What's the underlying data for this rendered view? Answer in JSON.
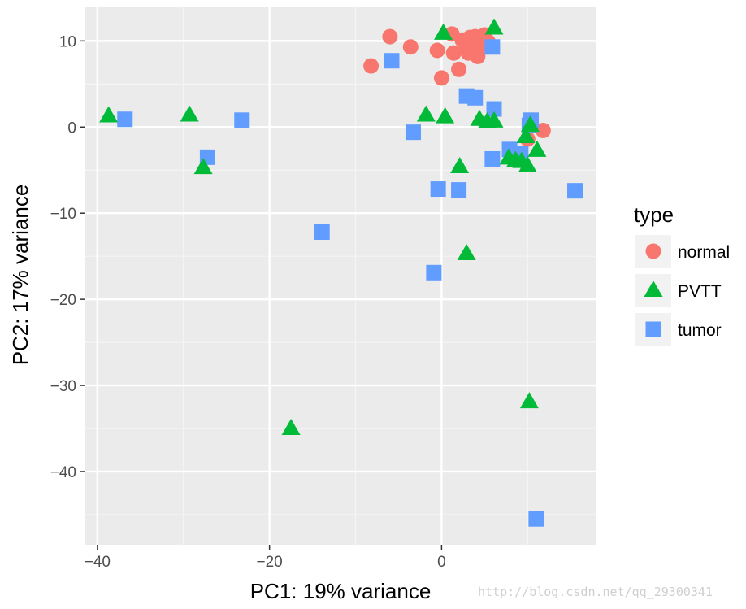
{
  "chart_data": {
    "type": "scatter",
    "xlabel": "PC1: 19% variance",
    "ylabel": "PC2: 17% variance",
    "xlim": [
      -41.5,
      18
    ],
    "ylim": [
      -48.5,
      14
    ],
    "xticks": [
      -40,
      -20,
      0
    ],
    "yticks": [
      10,
      0,
      -10,
      -20,
      -30,
      -40
    ],
    "tick_labels": {
      "x": [
        "−40",
        "−20",
        "0"
      ],
      "y": [
        "10",
        "0",
        "−10",
        "−20",
        "−30",
        "−40"
      ]
    },
    "grid": true,
    "legend": {
      "title": "type",
      "position": "right"
    },
    "series": [
      {
        "name": "normal",
        "shape": "circle",
        "color": "#F8766D",
        "points": [
          [
            -8.2,
            7.1
          ],
          [
            -6,
            10.5
          ],
          [
            -3.6,
            9.3
          ],
          [
            -0.5,
            8.9
          ],
          [
            0,
            5.7
          ],
          [
            1.2,
            10.8
          ],
          [
            1.4,
            8.6
          ],
          [
            2,
            6.7
          ],
          [
            2.4,
            10.1
          ],
          [
            2.9,
            9.3
          ],
          [
            3.1,
            8.6
          ],
          [
            3.3,
            10.4
          ],
          [
            3.6,
            9.6
          ],
          [
            3.9,
            10.5
          ],
          [
            4.2,
            8.2
          ],
          [
            4.3,
            9.2
          ],
          [
            4.6,
            10.3
          ],
          [
            5,
            10.7
          ],
          [
            5.4,
            9.9
          ],
          [
            10,
            -1.4
          ],
          [
            11.8,
            -0.4
          ]
        ]
      },
      {
        "name": "PVTT",
        "shape": "triangle",
        "color": "#00BA38",
        "points": [
          [
            -38.7,
            1.3
          ],
          [
            -29.3,
            1.4
          ],
          [
            -27.7,
            -4.7
          ],
          [
            -17.5,
            -35
          ],
          [
            -1.8,
            1.4
          ],
          [
            0.2,
            10.9
          ],
          [
            0.4,
            1.2
          ],
          [
            2.1,
            -4.6
          ],
          [
            2.9,
            -14.7
          ],
          [
            4.4,
            0.9
          ],
          [
            5.3,
            0.6
          ],
          [
            6.1,
            0.7
          ],
          [
            6.1,
            11.5
          ],
          [
            7.8,
            -3.6
          ],
          [
            8.6,
            -3.9
          ],
          [
            9.3,
            -4
          ],
          [
            9.8,
            -1.1
          ],
          [
            10,
            -4.5
          ],
          [
            10.3,
            0.2
          ],
          [
            10.2,
            -31.9
          ],
          [
            11.1,
            -2.7
          ]
        ]
      },
      {
        "name": "tumor",
        "shape": "square",
        "color": "#619CFF",
        "points": [
          [
            -36.8,
            0.9
          ],
          [
            -27.2,
            -3.5
          ],
          [
            -23.2,
            0.8
          ],
          [
            -13.9,
            -12.2
          ],
          [
            -5.8,
            7.7
          ],
          [
            -3.3,
            -0.6
          ],
          [
            -0.9,
            -16.9
          ],
          [
            -0.4,
            -7.2
          ],
          [
            2,
            -7.3
          ],
          [
            2.9,
            3.6
          ],
          [
            3.9,
            3.4
          ],
          [
            5.9,
            -3.7
          ],
          [
            5.9,
            9.3
          ],
          [
            6.1,
            2.1
          ],
          [
            7.9,
            -2.6
          ],
          [
            9.2,
            -3.1
          ],
          [
            10.2,
            0.2
          ],
          [
            10.4,
            0.8
          ],
          [
            11,
            -45.5
          ],
          [
            15.5,
            -7.4
          ]
        ]
      }
    ]
  },
  "watermark": "http://blog.csdn.net/qq_29300341"
}
